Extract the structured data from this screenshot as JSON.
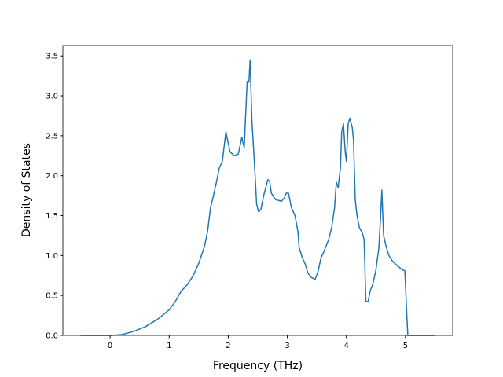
{
  "chart_data": {
    "type": "line",
    "xlabel": "Frequency (THz)",
    "ylabel": "Density of States",
    "x": [
      -0.5,
      0,
      0.2,
      0.4,
      0.6,
      0.8,
      1.0,
      1.1,
      1.2,
      1.3,
      1.4,
      1.5,
      1.6,
      1.65,
      1.7,
      1.75,
      1.8,
      1.85,
      1.9,
      1.96,
      2.03,
      2.1,
      2.17,
      2.23,
      2.27,
      2.32,
      2.35,
      2.37,
      2.4,
      2.44,
      2.48,
      2.51,
      2.55,
      2.6,
      2.67,
      2.7,
      2.73,
      2.8,
      2.9,
      2.95,
      2.98,
      3.02,
      3.07,
      3.13,
      3.18,
      3.2,
      3.25,
      3.3,
      3.35,
      3.4,
      3.47,
      3.52,
      3.57,
      3.62,
      3.7,
      3.75,
      3.8,
      3.83,
      3.86,
      3.9,
      3.92,
      3.95,
      3.98,
      4.0,
      4.03,
      4.06,
      4.1,
      4.12,
      4.15,
      4.18,
      4.22,
      4.27,
      4.3,
      4.33,
      4.37,
      4.4,
      4.45,
      4.5,
      4.55,
      4.58,
      4.6,
      4.63,
      4.67,
      4.72,
      4.78,
      4.85,
      4.9,
      4.95,
      4.99,
      5.02,
      5.04,
      5.5
    ],
    "values": [
      0,
      0,
      0.01,
      0.05,
      0.11,
      0.2,
      0.32,
      0.42,
      0.55,
      0.63,
      0.74,
      0.9,
      1.12,
      1.3,
      1.6,
      1.75,
      1.92,
      2.1,
      2.18,
      2.55,
      2.3,
      2.25,
      2.27,
      2.48,
      2.35,
      3.18,
      3.17,
      3.45,
      2.7,
      2.2,
      1.65,
      1.55,
      1.57,
      1.75,
      1.95,
      1.93,
      1.78,
      1.7,
      1.68,
      1.72,
      1.78,
      1.78,
      1.6,
      1.5,
      1.3,
      1.1,
      0.98,
      0.9,
      0.78,
      0.73,
      0.7,
      0.8,
      0.97,
      1.05,
      1.2,
      1.35,
      1.6,
      1.92,
      1.85,
      2.1,
      2.55,
      2.65,
      2.3,
      2.18,
      2.65,
      2.72,
      2.6,
      2.45,
      1.7,
      1.5,
      1.35,
      1.28,
      1.2,
      0.42,
      0.43,
      0.55,
      0.65,
      0.82,
      1.1,
      1.5,
      1.82,
      1.25,
      1.12,
      1.0,
      0.93,
      0.88,
      0.85,
      0.82,
      0.81,
      0.3,
      0,
      0
    ],
    "color": "#1f77b4",
    "xlim": [
      -0.8,
      5.8
    ],
    "ylim": [
      0,
      3.63
    ],
    "xticks": [
      0,
      1,
      2,
      3,
      4,
      5
    ],
    "yticks": [
      {
        "value": 0,
        "label": "0.0"
      },
      {
        "value": 0.5,
        "label": "0.5"
      },
      {
        "value": 1,
        "label": "1.0"
      },
      {
        "value": 1.5,
        "label": "1.5"
      },
      {
        "value": 2,
        "label": "2.0"
      },
      {
        "value": 2.5,
        "label": "2.5"
      },
      {
        "value": 3,
        "label": "3.0"
      },
      {
        "value": 3.5,
        "label": "3.5"
      }
    ],
    "grid": false
  }
}
